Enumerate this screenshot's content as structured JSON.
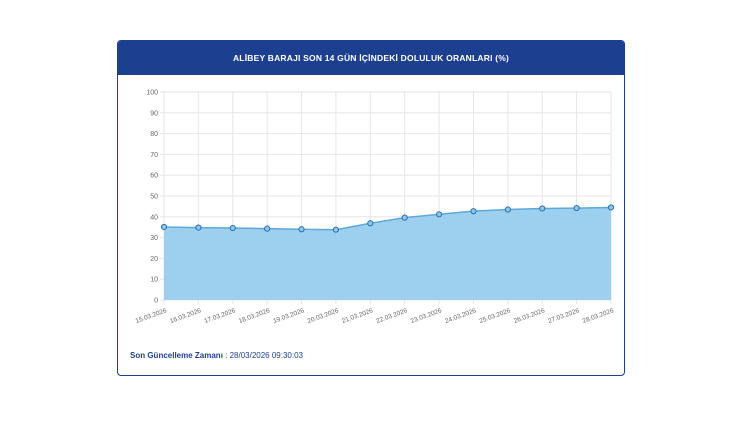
{
  "card": {
    "title": "ALİBEY BARAJI SON 14 GÜN İÇİNDEKİ DOLULUK ORANLARI (%)"
  },
  "footer": {
    "label": "Son Güncelleme Zamanı",
    "separator": " : ",
    "value": "28/03/2026 09:30:03"
  },
  "colors": {
    "header": "#1d3f8f",
    "area_fill": "#9dd0ef",
    "line": "#5ea8d8",
    "point_fill": "#8cc6ea",
    "point_stroke": "#2f6fa8"
  },
  "chart_data": {
    "type": "area",
    "title": "ALİBEY BARAJI SON 14 GÜN İÇİNDEKİ DOLULUK ORANLARI (%)",
    "xlabel": "",
    "ylabel": "",
    "ylim": [
      0,
      100
    ],
    "yticks": [
      0,
      10,
      20,
      30,
      40,
      50,
      60,
      70,
      80,
      90,
      100
    ],
    "grid": true,
    "categories": [
      "15.03.2026",
      "16.03.2026",
      "17.03.2026",
      "18.03.2026",
      "19.03.2026",
      "20.03.2026",
      "21.03.2026",
      "22.03.2026",
      "23.03.2026",
      "24.03.2026",
      "25.03.2026",
      "26.03.2026",
      "27.03.2026",
      "28.03.2026"
    ],
    "series": [
      {
        "values": [
          35.1,
          34.8,
          34.6,
          34.3,
          34.0,
          33.8,
          36.9,
          39.6,
          41.2,
          42.7,
          43.5,
          44.0,
          44.2,
          44.5
        ]
      }
    ]
  }
}
